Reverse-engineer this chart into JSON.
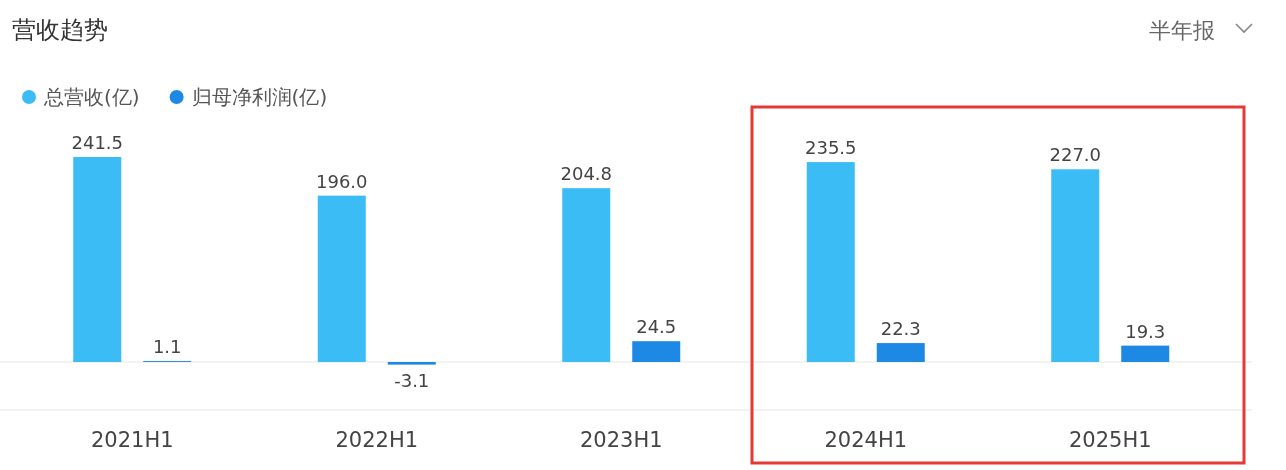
{
  "chart_data": {
    "type": "bar",
    "title": "营收趋势",
    "annotations": [
      "半年报"
    ],
    "categories": [
      "2021H1",
      "2022H1",
      "2023H1",
      "2024H1",
      "2025H1"
    ],
    "series": [
      {
        "name": "总营收(亿)",
        "color": "#3bbcf5",
        "values": [
          241.5,
          196.0,
          204.8,
          235.5,
          227.0
        ],
        "value_labels": [
          "241.5",
          "196.0",
          "204.8",
          "235.5",
          "227.0"
        ]
      },
      {
        "name": "归母净利润(亿)",
        "color": "#1e88e5",
        "values": [
          1.1,
          -3.1,
          24.5,
          22.3,
          19.3
        ],
        "value_labels": [
          "1.1",
          "-3.1",
          "24.5",
          "22.3",
          "19.3"
        ]
      }
    ],
    "grid": false,
    "legend": "top left"
  }
}
